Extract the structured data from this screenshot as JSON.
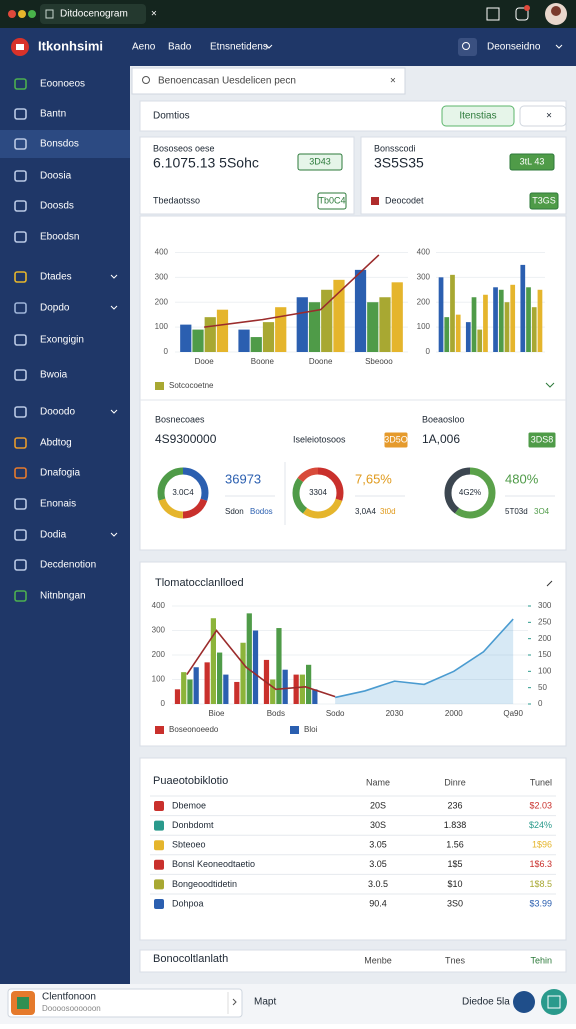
{
  "browser": {
    "tab": "Ditdocenogram"
  },
  "header": {
    "brand": "Itkonhsimi",
    "nav": [
      "Aeno",
      "Bado",
      "Etnsnetidens"
    ],
    "account": "Deonseidno"
  },
  "sidebar": [
    "Eoonoeos",
    "Bantn",
    "Bonsdos",
    "Doosia",
    "Doosds",
    "Eboodsn",
    "Dtades",
    "Dopdo",
    "Exongigin",
    "Bwoia",
    "Dooodo",
    "Abdtog",
    "Dnafogia",
    "Enonais",
    "Dodia",
    "Decdenotion",
    "Nitnbngan"
  ],
  "search": {
    "placeholder": "Benoencasan  Uesdelicen pecn"
  },
  "toolbar": {
    "title": "Domtios",
    "button": "Itenstias"
  },
  "kpis": [
    {
      "label": "Bososeos oese",
      "value": "6.1075.13 5Sohc",
      "badge": "3D43",
      "sub": "Tbedaotsso",
      "sub_badge": "Tb0C4"
    },
    {
      "label": "Bonsscodi",
      "value": "3S5S35",
      "badge": "3tL 43",
      "sub": "Deocodet",
      "sub_badge": "T3GS"
    }
  ],
  "chart_data": [
    {
      "type": "bar",
      "categories": [
        "Dooe",
        "Boone",
        "Doone",
        "Sbeooo"
      ],
      "ylim": [
        0,
        450
      ],
      "yticks": [
        0,
        100,
        200,
        300,
        400
      ],
      "series": [
        {
          "color": "#2b5fb0",
          "values": [
            110,
            90,
            220,
            330
          ]
        },
        {
          "color": "#4f9b48",
          "values": [
            90,
            60,
            200,
            200
          ]
        },
        {
          "name": "Sotcocoetne",
          "color": "#a8a832",
          "values": [
            140,
            120,
            250,
            220
          ]
        },
        {
          "color": "#e5b52c",
          "values": [
            170,
            180,
            290,
            280
          ]
        },
        {
          "type": "line",
          "color": "#9b2c2c",
          "values": [
            100,
            130,
            170,
            390
          ]
        }
      ]
    },
    {
      "type": "bar",
      "categories": [
        null,
        null,
        null,
        null
      ],
      "ylim": [
        0,
        450
      ],
      "yticks": [
        0,
        100,
        200,
        300,
        400
      ],
      "series": [
        {
          "color": "#2b5fb0",
          "values": [
            300,
            120,
            260,
            350
          ]
        },
        {
          "color": "#4f9b48",
          "values": [
            140,
            220,
            250,
            260
          ]
        },
        {
          "color": "#a8a832",
          "values": [
            310,
            90,
            200,
            180
          ]
        },
        {
          "color": "#e5b52c",
          "values": [
            150,
            230,
            270,
            250
          ]
        }
      ]
    },
    {
      "type": "bar",
      "title": "Tlomatocclanlloed",
      "categories": [
        null,
        "Bioe",
        null,
        "Bods",
        null,
        "Sodo",
        null,
        "2030",
        null,
        "2000",
        null,
        "Qa90"
      ],
      "ylim": [
        0,
        400
      ],
      "yticks": [
        0,
        100,
        200,
        300,
        400
      ],
      "y2lim": [
        0,
        300
      ],
      "y2ticks": [
        0,
        50,
        100,
        150,
        200,
        250,
        300
      ],
      "series": [
        {
          "name": "Boseonoeedo",
          "color": "#c9302c",
          "values": [
            60,
            170,
            90,
            180,
            120,
            null,
            null,
            null,
            null,
            null,
            null,
            null
          ]
        },
        {
          "color": "#8cb43a",
          "values": [
            130,
            350,
            250,
            100,
            120,
            null,
            null,
            null,
            null,
            null,
            null,
            null
          ]
        },
        {
          "color": "#4f9b48",
          "values": [
            100,
            210,
            370,
            310,
            160,
            null,
            null,
            null,
            null,
            null,
            null,
            null
          ]
        },
        {
          "name": "Bloi",
          "color": "#2b5fb0",
          "values": [
            150,
            120,
            300,
            140,
            60,
            null,
            null,
            null,
            null,
            null,
            null,
            null
          ]
        },
        {
          "type": "line",
          "color": "#9b2c2c",
          "values": [
            120,
            300,
            150,
            60,
            70,
            30,
            null,
            null,
            null,
            null,
            null,
            null
          ]
        },
        {
          "type": "area",
          "axis": "y2",
          "color": "#4a9bd0",
          "values": [
            null,
            null,
            null,
            null,
            null,
            20,
            40,
            70,
            60,
            100,
            160,
            260
          ]
        }
      ]
    }
  ],
  "summary": {
    "left_label": "Bosnecoaes",
    "left_value": "4S9300000",
    "mid_label": "Iseleiotosoos",
    "mid_badge": "3D5O",
    "right_label": "Boeaosloo",
    "right_value": "1A,006",
    "right_badge": "3DS8"
  },
  "donuts": [
    {
      "center": "3.0C4",
      "value": "36973",
      "color": "#2b5fb0",
      "notes": [
        "Sdon",
        "Bodos"
      ],
      "segments": [
        {
          "value": 30,
          "color": "#2b5fb0"
        },
        {
          "value": 20,
          "color": "#c9302c"
        },
        {
          "value": 20,
          "color": "#e5b52c"
        },
        {
          "value": 30,
          "color": "#4f9b48"
        }
      ]
    },
    {
      "center": "3304",
      "value": "7,65%",
      "color": "#e09a1c",
      "notes": [
        "3,0A4",
        "3t0d"
      ],
      "segments": [
        {
          "value": 30,
          "color": "#c9302c"
        },
        {
          "value": 30,
          "color": "#e5b52c"
        },
        {
          "value": 25,
          "color": "#4f9b48"
        },
        {
          "value": 15,
          "color": "#d84a3a"
        }
      ]
    },
    {
      "center": "4G2%",
      "value": "480%",
      "color": "#4f9b48",
      "notes": [
        "5T03d",
        "3O4"
      ],
      "segments": [
        {
          "value": 60,
          "color": "#5aa14a"
        },
        {
          "value": 40,
          "color": "#3c4650"
        }
      ]
    }
  ],
  "table": {
    "title": "Puaeotobiklotio",
    "headers": [
      "Name",
      "Dinre",
      "Tunel"
    ],
    "rows": [
      {
        "cells": [
          "Dbemoe",
          "20S",
          "236",
          "$2.03"
        ],
        "color": "#c9302c"
      },
      {
        "cells": [
          "Donbdomt",
          "30S",
          "1.838",
          "$24%"
        ],
        "color": "#2a9a8c"
      },
      {
        "cells": [
          "Sbteoeo",
          "3.05",
          "1.56",
          "1$96"
        ],
        "color": "#e5b52c"
      },
      {
        "cells": [
          "Bonsl Keoneodtaetio",
          "3.05",
          "1$5",
          "1$6.3"
        ],
        "color": "#c9302c"
      },
      {
        "cells": [
          "Bongeoodtidetin",
          "3.0.5",
          "$10",
          "1$8.5"
        ],
        "color": "#a8a832"
      },
      {
        "cells": [
          "Dohpoa",
          "90.4",
          "3S0",
          "$3.99"
        ],
        "color": "#2b5fb0"
      }
    ]
  },
  "footer_card": {
    "title": "Bonocoltlanlath",
    "headers": [
      "Menbe",
      "Tnes",
      "Tehin"
    ]
  },
  "bottom": {
    "input": "Clentfonoon",
    "hint": "Doooosoooooon",
    "link": "Mapt",
    "status": "Diedoe 5la"
  }
}
